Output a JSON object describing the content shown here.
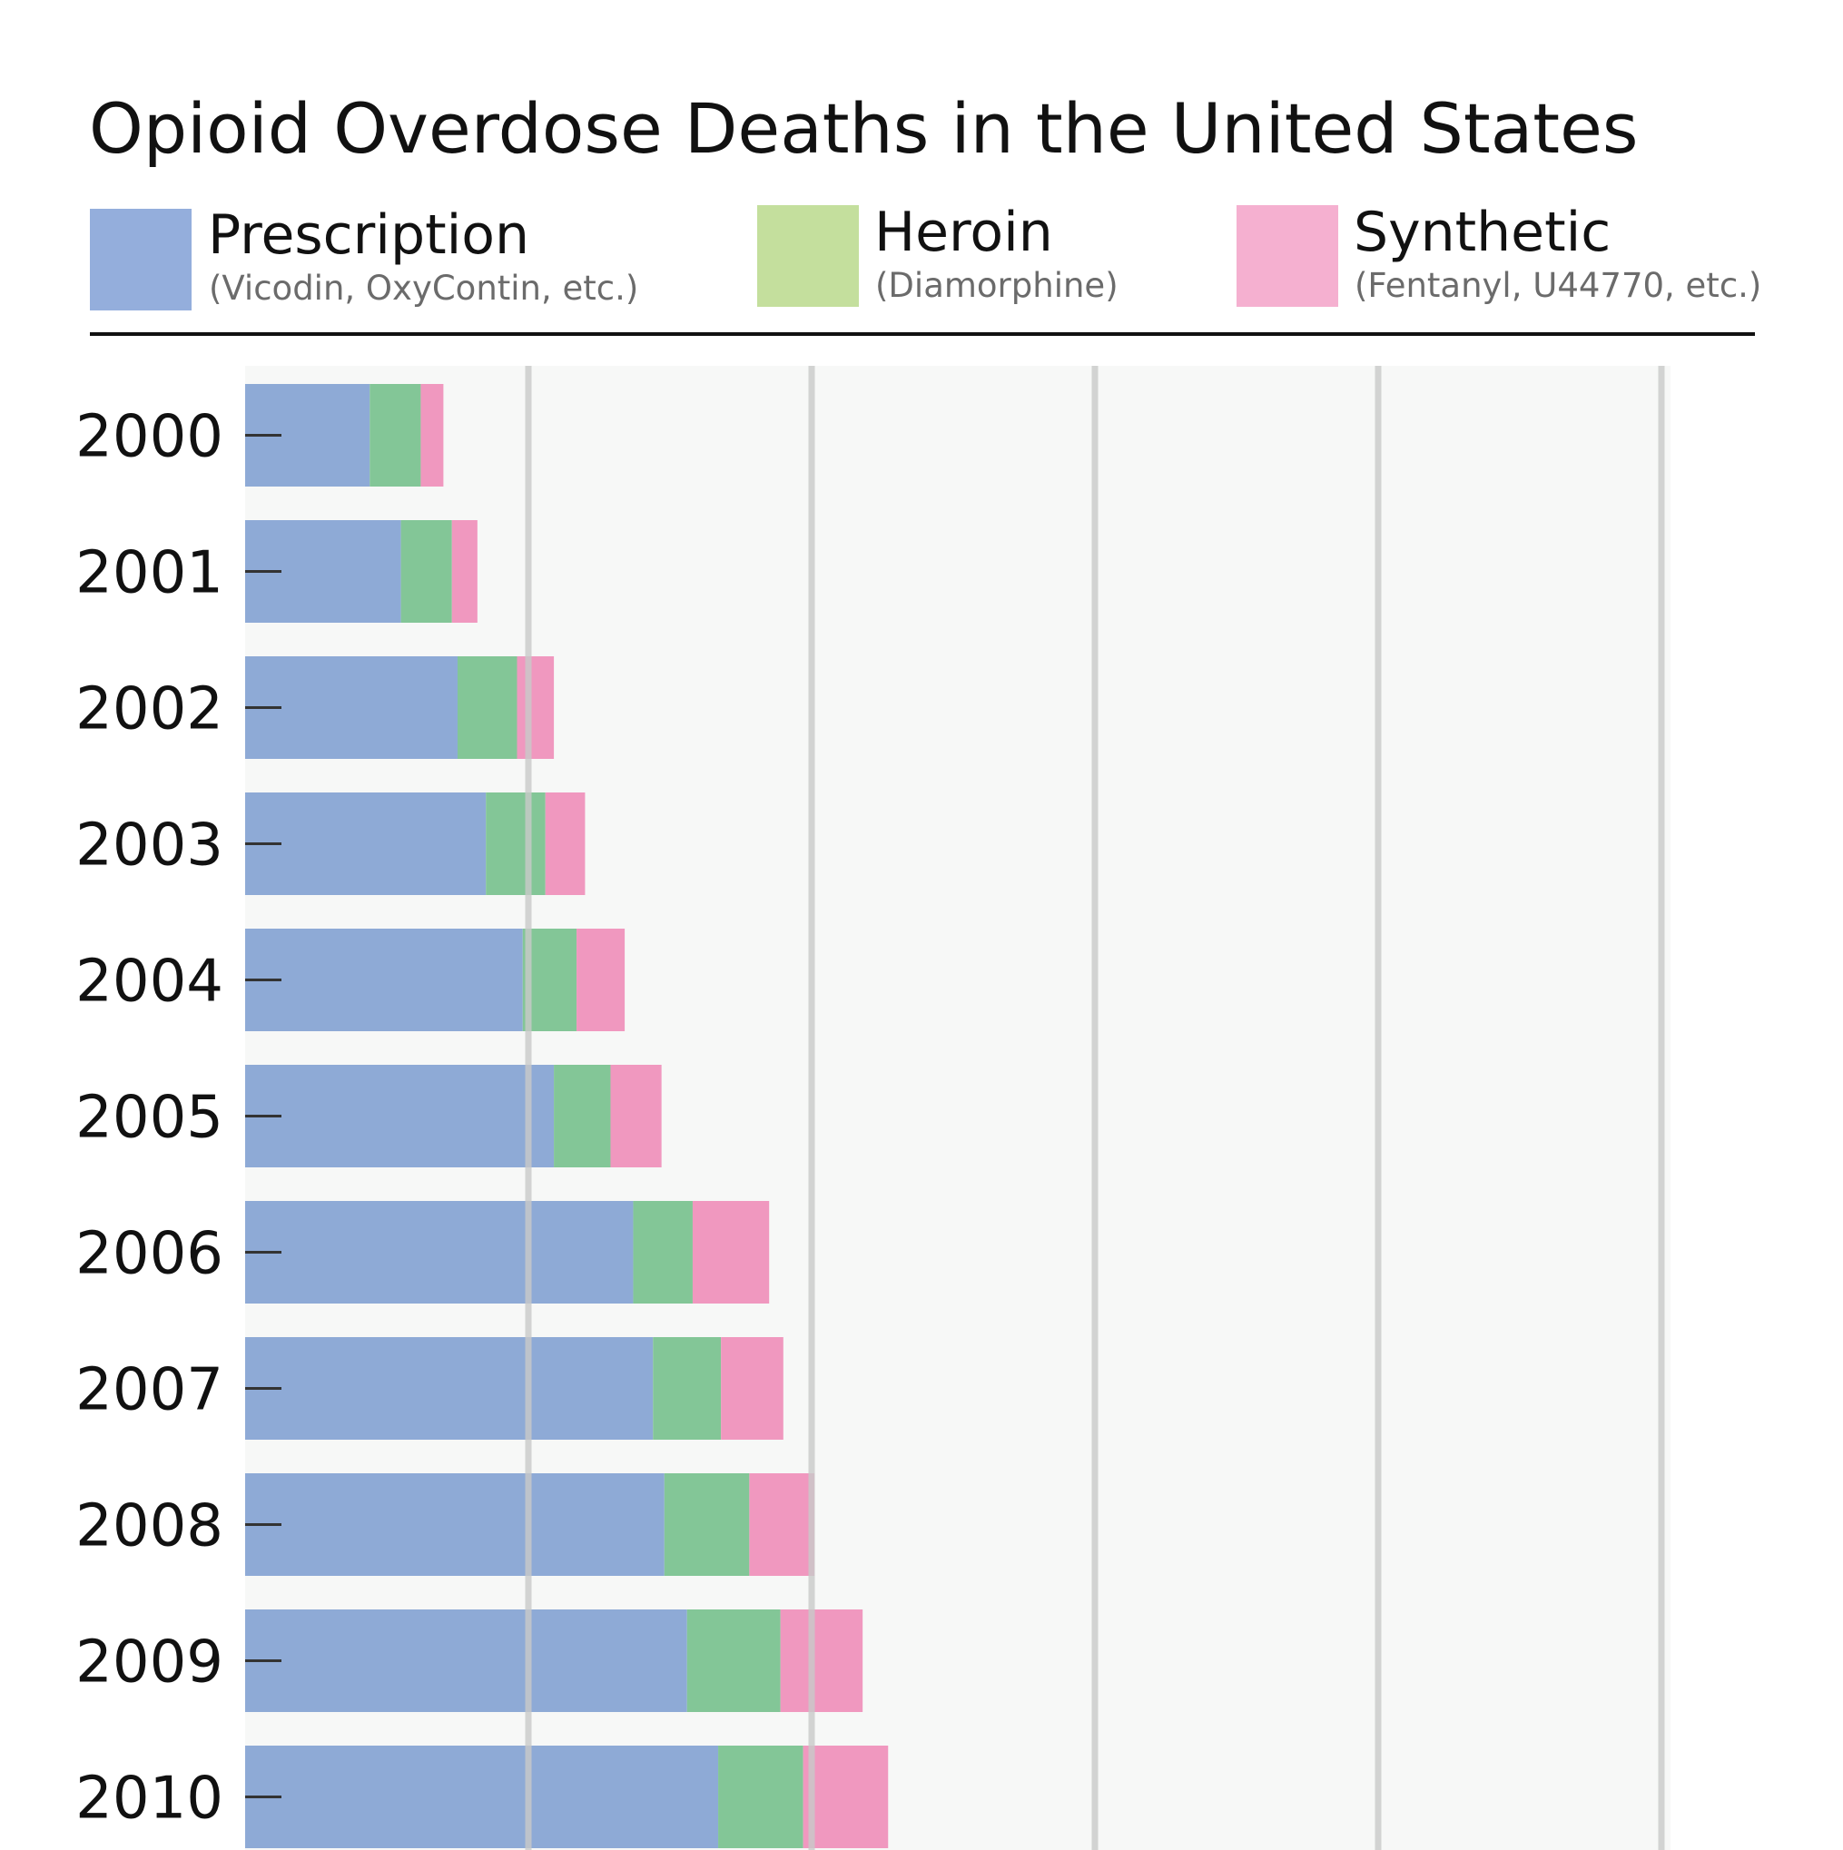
{
  "title": "Opioid Overdose Deaths in the United States",
  "legend": [
    {
      "name": "Prescription",
      "sub": "(Vicodin, OxyContin, etc.)",
      "color": "#94aedc"
    },
    {
      "name": "Heroin",
      "sub": "(Diamorphine)",
      "color": "#c4df9d"
    },
    {
      "name": "Synthetic",
      "sub": "(Fentanyl, U44770, etc.)",
      "color": "#f5b0d0"
    }
  ],
  "colors": {
    "prescription_bar": "#8eaad6",
    "heroin_bar": "#83c697",
    "synthetic_bar": "#f098bf",
    "plot_background": "#f7f8f7",
    "gridline": "#c9cac9",
    "rule": "#111111"
  },
  "chart_data": {
    "type": "bar",
    "orientation": "horizontal",
    "stacked": true,
    "categories": [
      "2000",
      "2001",
      "2002",
      "2003",
      "2004",
      "2005",
      "2006",
      "2007",
      "2008",
      "2009",
      "2010"
    ],
    "series": [
      {
        "name": "Prescription",
        "values": [
          4.4,
          5.5,
          7.5,
          8.5,
          9.8,
          10.9,
          13.7,
          14.4,
          14.8,
          15.6,
          16.7
        ]
      },
      {
        "name": "Heroin",
        "values": [
          1.8,
          1.8,
          2.1,
          2.1,
          1.9,
          2.0,
          2.1,
          2.4,
          3.0,
          3.3,
          3.0
        ]
      },
      {
        "name": "Synthetic",
        "values": [
          0.8,
          0.9,
          1.3,
          1.4,
          1.7,
          1.8,
          2.7,
          2.2,
          2.3,
          2.9,
          3.0
        ]
      }
    ],
    "xlim": [
      0,
      50
    ],
    "grid_x": [
      10,
      20,
      30,
      40,
      50
    ],
    "grid": true,
    "legend_position": "top"
  }
}
